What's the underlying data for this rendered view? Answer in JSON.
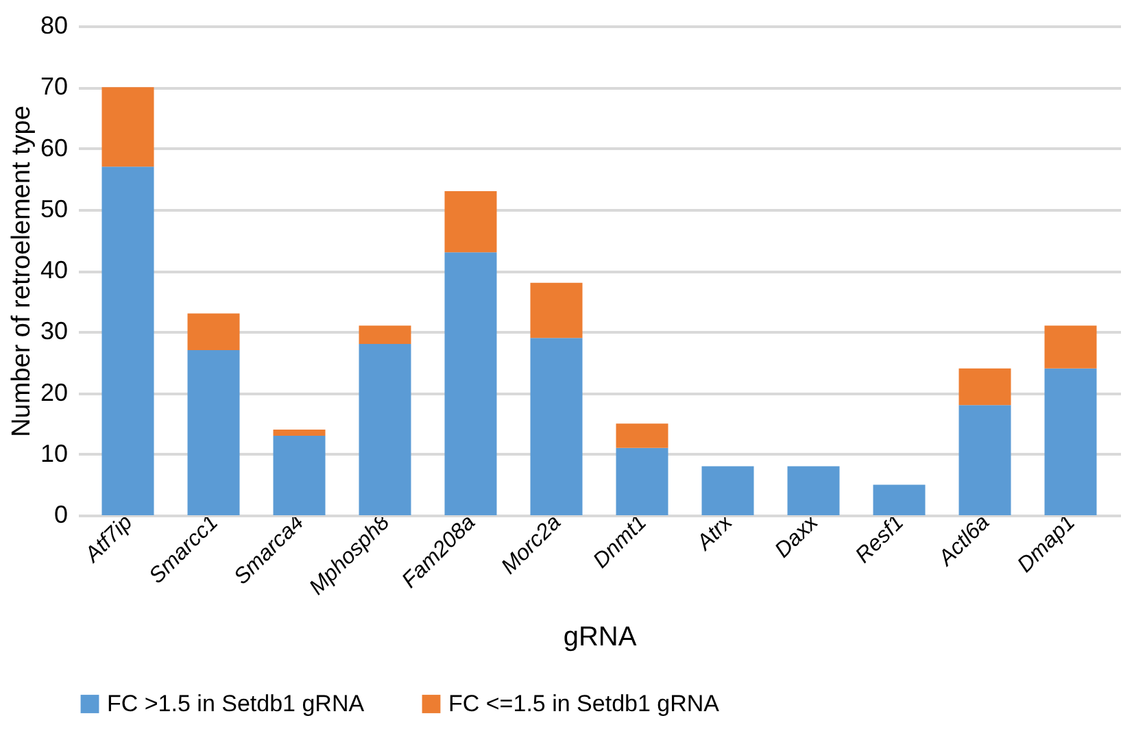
{
  "chart_data": {
    "type": "bar",
    "stacked": true,
    "xlabel": "gRNA",
    "ylabel": "Number of retroelement type",
    "categories": [
      "Atf7ip",
      "Smarcc1",
      "Smarca4",
      "Mphosph8",
      "Fam208a",
      "Morc2a",
      "Dnmt1",
      "Atrx",
      "Daxx",
      "Resf1",
      "Actl6a",
      "Dmap1"
    ],
    "series": [
      {
        "name": "FC >1.5 in Setdb1 gRNA",
        "color": "#5b9bd5",
        "values": [
          57,
          27,
          13,
          28,
          43,
          29,
          11,
          8,
          8,
          5,
          18,
          24
        ]
      },
      {
        "name": "FC <=1.5 in Setdb1 gRNA",
        "color": "#ed7d31",
        "values": [
          13,
          6,
          1,
          3,
          10,
          9,
          4,
          0,
          0,
          0,
          6,
          7
        ]
      }
    ],
    "ylim": [
      0,
      80
    ],
    "yticks": [
      0,
      10,
      20,
      30,
      40,
      50,
      60,
      70,
      80
    ],
    "grid": "y",
    "legend": "bottom"
  }
}
